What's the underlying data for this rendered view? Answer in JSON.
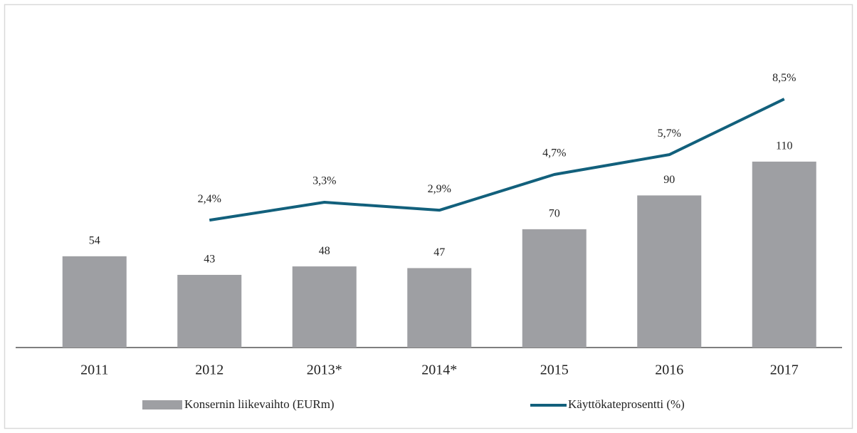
{
  "chart_data": {
    "type": "bar",
    "categories": [
      "2011",
      "2012",
      "2013*",
      "2014*",
      "2015",
      "2016",
      "2017"
    ],
    "series": [
      {
        "name": "Konsernin liikevaihto (EURm)",
        "type": "bar",
        "color": "#9e9fa3",
        "values": [
          54,
          43,
          48,
          47,
          70,
          90,
          110
        ]
      },
      {
        "name": "Käyttökateprosentti (%)",
        "type": "line",
        "axis": "y2",
        "color": "#12607c",
        "values": [
          null,
          2.4,
          3.3,
          2.9,
          4.7,
          5.7,
          8.5
        ],
        "value_labels": [
          null,
          "2,4%",
          "3,3%",
          "2,9%",
          "4,7%",
          "5,7%",
          "8,5%"
        ]
      }
    ],
    "ylim": [
      0,
      120
    ],
    "y2lim": [
      0,
      10
    ],
    "legend": "bottom",
    "grid": false
  }
}
